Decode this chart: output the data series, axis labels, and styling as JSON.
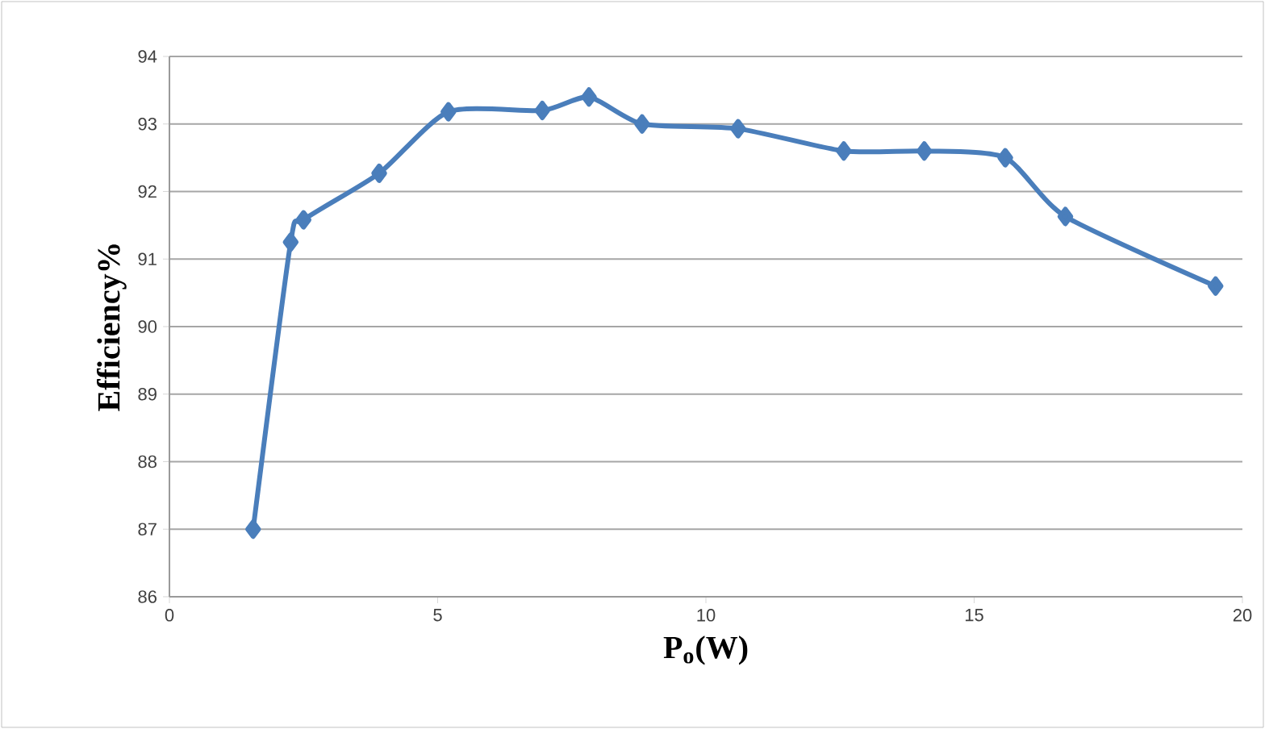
{
  "chart_data": {
    "type": "line",
    "xlabel": "P$_{o}$(W)",
    "ylabel": "Efficiency%",
    "series": [
      {
        "color": "#4a7ebb",
        "x": [
          1.56,
          2.26,
          2.5,
          3.91,
          5.2,
          6.95,
          7.82,
          8.81,
          10.6,
          12.57,
          14.07,
          15.58,
          16.7,
          19.5
        ],
        "values": [
          87.0,
          91.25,
          91.58,
          92.27,
          93.18,
          93.2,
          93.4,
          93.0,
          92.93,
          92.6,
          92.6,
          92.5,
          91.63,
          90.6
        ]
      }
    ],
    "xlim": [
      0,
      20
    ],
    "xticks": [
      0,
      5,
      10,
      15,
      20
    ],
    "ylim": [
      86,
      94
    ],
    "yticks": [
      86,
      87,
      88,
      89,
      90,
      91,
      92,
      93,
      94
    ],
    "grid": "y",
    "marker": "diamond",
    "line_style": "solid"
  }
}
